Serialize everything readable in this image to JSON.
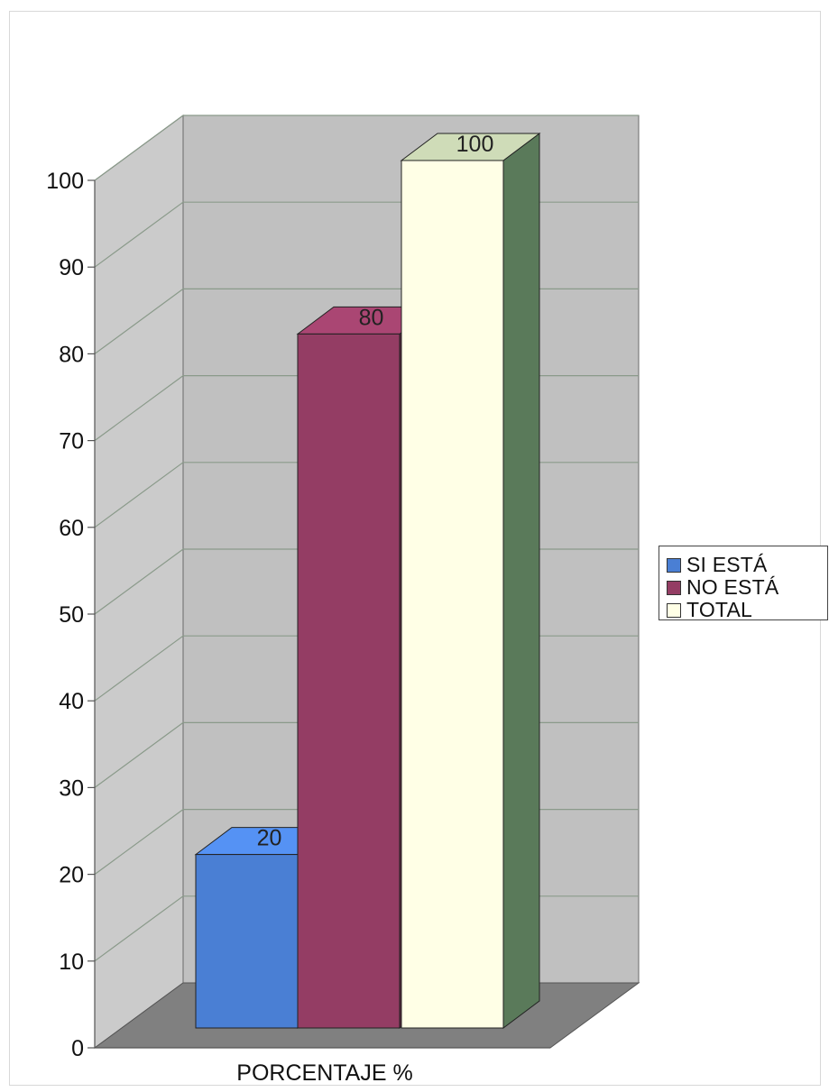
{
  "chart_data": {
    "type": "bar",
    "style": "3d-column",
    "categories": [
      "PORCENTAJE %"
    ],
    "series": [
      {
        "name": "SI ESTÁ",
        "values": [
          20
        ],
        "color": "#4a7fd4"
      },
      {
        "name": "NO ESTÁ",
        "values": [
          80
        ],
        "color": "#943d64"
      },
      {
        "name": "TOTAL",
        "values": [
          100
        ],
        "color": "#ffffe6"
      }
    ],
    "data_labels": [
      "20",
      "80",
      "100"
    ],
    "xlabel": "PORCENTAJE %",
    "ylabel": "",
    "ylim": [
      0,
      100
    ],
    "yticks": [
      "0",
      "10",
      "20",
      "30",
      "40",
      "50",
      "60",
      "70",
      "80",
      "90",
      "100"
    ],
    "grid": true,
    "legend_position": "right",
    "colors": {
      "wall": "#c0c0c0",
      "floor": "#808080",
      "gridline": "#8a9a8a",
      "total_side": "#5a7a5a",
      "total_top": "#cfdcb8"
    }
  }
}
